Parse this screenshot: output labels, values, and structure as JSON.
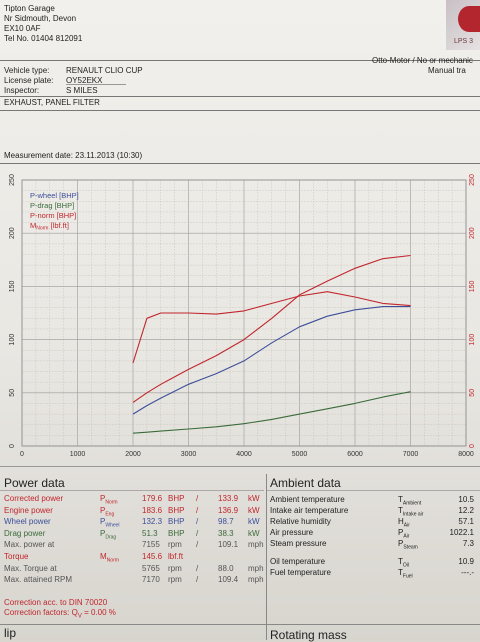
{
  "header": {
    "garage_lines": [
      "Tipton Garage",
      "Nr Sidmouth, Devon",
      "EX10 0AF",
      "Tel No. 01404 812091"
    ],
    "vehicle_label": "Vehicle type:",
    "vehicle_value": "RENAULT CLIO CUP",
    "license_label": "License plate:",
    "license_value": "OY52EKX",
    "inspector_label": "Inspector:",
    "inspector_value": "S MILES",
    "note": "EXHAUST, PANEL FILTER",
    "right_line1": "Otto-Motor / No or mechanic",
    "right_line2": "Manual tra",
    "logo_text": "LPS 3",
    "measurement_date": "Measurement date: 23.11.2013 (10:30)"
  },
  "chart_data": {
    "type": "line",
    "x": [
      2000,
      2250,
      2500,
      3000,
      3500,
      4000,
      4500,
      5000,
      5500,
      6000,
      6500,
      7000
    ],
    "xlim": [
      0,
      8000
    ],
    "x_ticks": [
      "0",
      "1000",
      "2000",
      "3000",
      "4000",
      "5000",
      "6000",
      "7000",
      "8000"
    ],
    "ylim": [
      0,
      250
    ],
    "y_ticks": [
      "0",
      "50",
      "100",
      "150",
      "200",
      "250"
    ],
    "right_ticks": [
      "0",
      "50",
      "100",
      "150",
      "200",
      "250"
    ],
    "grid": true,
    "legend_position": "top-left",
    "series": [
      {
        "name": "P-wheel [BHP]",
        "color": "#3d4f9a",
        "values": [
          30,
          38,
          45,
          58,
          68,
          80,
          97,
          112,
          122,
          128,
          131,
          131
        ]
      },
      {
        "name": "P-drag [BHP]",
        "color": "#3b6b3b",
        "values": [
          12,
          13,
          14,
          16,
          18,
          21,
          25,
          30,
          35,
          40,
          46,
          51
        ]
      },
      {
        "name": "P-norm [BHP]",
        "color": "#c0262d",
        "values": [
          41,
          50,
          58,
          72,
          85,
          100,
          120,
          142,
          155,
          167,
          176,
          179
        ]
      },
      {
        "name": "M [lbf.ft]",
        "color": "#c0262d",
        "values": [
          78,
          120,
          125,
          125,
          124,
          127,
          134,
          141,
          145,
          140,
          134,
          132
        ]
      }
    ],
    "legend_label_4_main": "M",
    "legend_label_4_sub": "Norm",
    "legend_label_4_unit": " [lbf.ft]"
  },
  "power": {
    "title": "Power data",
    "rows": [
      {
        "label": "Corrected power",
        "sym": "P",
        "sub": "Norm",
        "v1": "179.6",
        "u1": "BHP",
        "v2": "133.9",
        "u2": "kW",
        "cls": "red"
      },
      {
        "label": "Engine power",
        "sym": "P",
        "sub": "Eng",
        "v1": "183.6",
        "u1": "BHP",
        "v2": "136.9",
        "u2": "kW",
        "cls": "red"
      },
      {
        "label": "Wheel power",
        "sym": "P",
        "sub": "Wheel",
        "v1": "132.3",
        "u1": "BHP",
        "v2": "98.7",
        "u2": "kW",
        "cls": "blue"
      },
      {
        "label": "Drag power",
        "sym": "P",
        "sub": "Drag",
        "v1": "51.3",
        "u1": "BHP",
        "v2": "38.3",
        "u2": "kW",
        "cls": "green"
      },
      {
        "label": "Max. power at",
        "sym": "",
        "sub": "",
        "v1": "7155",
        "u1": "rpm",
        "v2": "109.1",
        "u2": "mph",
        "cls": "grey"
      },
      {
        "label": "Torque",
        "sym": "M",
        "sub": "Norm",
        "v1": "145.6",
        "u1": "lbf.ft",
        "v2": "",
        "u2": "",
        "cls": "red"
      },
      {
        "label": "Max. Torque at",
        "sym": "",
        "sub": "",
        "v1": "5765",
        "u1": "rpm",
        "v2": "88.0",
        "u2": "mph",
        "cls": "grey"
      },
      {
        "label": "Max. attained RPM",
        "sym": "",
        "sub": "",
        "v1": "7170",
        "u1": "rpm",
        "v2": "109.4",
        "u2": "mph",
        "cls": "grey"
      }
    ],
    "din_text": "Correction acc. to DIN 70020",
    "factor_text": "Correction factors: Q",
    "factor_value": "= 0.00 %"
  },
  "ambient": {
    "title": "Ambient data",
    "rows": [
      {
        "label": "Ambient temperature",
        "sym": "T",
        "sub": "Ambient",
        "value": "10.5"
      },
      {
        "label": "Intake air temperature",
        "sym": "T",
        "sub": "Intake air",
        "value": "12.2"
      },
      {
        "label": "Relative humidity",
        "sym": "H",
        "sub": "Air",
        "value": "57.1"
      },
      {
        "label": "Air pressure",
        "sym": "P",
        "sub": "Air",
        "value": "1022.1"
      },
      {
        "label": "Steam pressure",
        "sym": "P",
        "sub": "Steam",
        "value": "7.3"
      },
      {
        "label": "Oil temperature",
        "sym": "T",
        "sub": "Oil",
        "value": "10.9"
      },
      {
        "label": "Fuel temperature",
        "sym": "T",
        "sub": "Fuel",
        "value": "---.-"
      }
    ]
  },
  "footer": {
    "left": "lip",
    "right": "Rotating mass"
  }
}
